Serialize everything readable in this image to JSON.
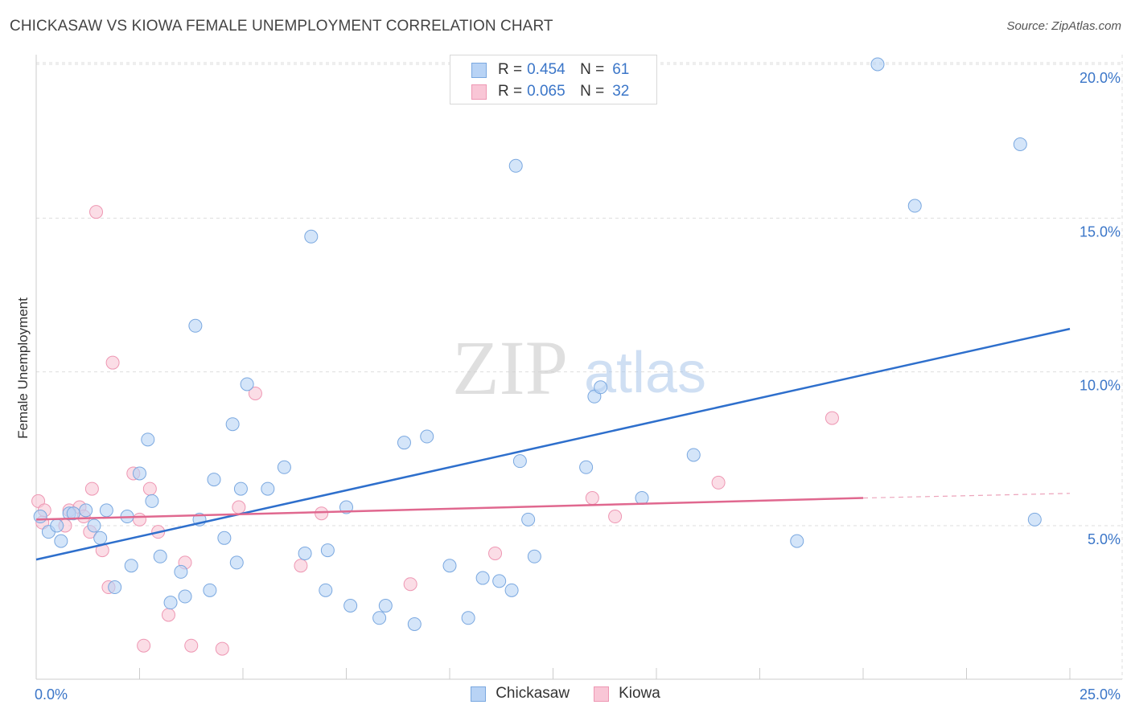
{
  "title": "CHICKASAW VS KIOWA FEMALE UNEMPLOYMENT CORRELATION CHART",
  "source": "Source: ZipAtlas.com",
  "watermark": {
    "zip": "ZIP",
    "atlas": "atlas"
  },
  "legend": {
    "r_label": "R =",
    "n_label": "N =",
    "rows": [
      {
        "name": "Chickasaw",
        "r": "0.454",
        "n": "61"
      },
      {
        "name": "Kiowa",
        "r": "0.065",
        "n": "32"
      }
    ]
  },
  "colors": {
    "chickasaw_fill": "#b8d3f5",
    "chickasaw_stroke": "#7aa8e0",
    "chickasaw_line": "#2e6fcc",
    "kiowa_fill": "#f9c6d6",
    "kiowa_stroke": "#ee97b3",
    "kiowa_line": "#e0688f",
    "tick_label": "#3b76c8",
    "grid": "#dddddd"
  },
  "chart_data": {
    "type": "scatter",
    "title": "CHICKASAW VS KIOWA FEMALE UNEMPLOYMENT CORRELATION CHART",
    "ylabel": "Female Unemployment",
    "xlabel": "",
    "xlim": [
      0,
      25
    ],
    "ylim": [
      0,
      20.5
    ],
    "x_tick_labels": [
      {
        "value": 0,
        "label": "0.0%"
      },
      {
        "value": 25,
        "label": "25.0%"
      }
    ],
    "y_tick_labels": [
      {
        "value": 5,
        "label": "5.0%"
      },
      {
        "value": 10,
        "label": "10.0%"
      },
      {
        "value": 15,
        "label": "15.0%"
      },
      {
        "value": 20,
        "label": "20.0%"
      }
    ],
    "series": [
      {
        "name": "Chickasaw",
        "points": [
          [
            0.1,
            5.3
          ],
          [
            0.3,
            4.8
          ],
          [
            0.5,
            5.0
          ],
          [
            0.6,
            4.5
          ],
          [
            0.8,
            5.4
          ],
          [
            0.9,
            5.4
          ],
          [
            1.2,
            5.5
          ],
          [
            1.4,
            5.0
          ],
          [
            1.55,
            4.6
          ],
          [
            1.7,
            5.5
          ],
          [
            1.9,
            3.0
          ],
          [
            2.2,
            5.3
          ],
          [
            2.3,
            3.7
          ],
          [
            2.5,
            6.7
          ],
          [
            2.7,
            7.8
          ],
          [
            2.8,
            5.8
          ],
          [
            3.0,
            4.0
          ],
          [
            3.25,
            2.5
          ],
          [
            3.5,
            3.5
          ],
          [
            3.6,
            2.7
          ],
          [
            3.85,
            11.5
          ],
          [
            3.95,
            5.2
          ],
          [
            4.2,
            2.9
          ],
          [
            4.3,
            6.5
          ],
          [
            4.55,
            4.6
          ],
          [
            4.75,
            8.3
          ],
          [
            4.85,
            3.8
          ],
          [
            4.95,
            6.2
          ],
          [
            5.1,
            9.6
          ],
          [
            5.6,
            6.2
          ],
          [
            6.0,
            6.9
          ],
          [
            6.5,
            4.1
          ],
          [
            6.65,
            14.4
          ],
          [
            7.0,
            2.9
          ],
          [
            7.05,
            4.2
          ],
          [
            7.5,
            5.6
          ],
          [
            7.6,
            2.4
          ],
          [
            8.3,
            2.0
          ],
          [
            8.45,
            2.4
          ],
          [
            8.9,
            7.7
          ],
          [
            9.15,
            1.8
          ],
          [
            9.45,
            7.9
          ],
          [
            10.0,
            3.7
          ],
          [
            10.45,
            2.0
          ],
          [
            10.8,
            3.3
          ],
          [
            11.2,
            3.2
          ],
          [
            11.5,
            2.9
          ],
          [
            11.6,
            16.7
          ],
          [
            11.7,
            7.1
          ],
          [
            11.9,
            5.2
          ],
          [
            12.05,
            4.0
          ],
          [
            13.3,
            6.9
          ],
          [
            13.5,
            9.2
          ],
          [
            13.65,
            9.5
          ],
          [
            14.65,
            5.9
          ],
          [
            15.9,
            7.3
          ],
          [
            18.4,
            4.5
          ],
          [
            20.35,
            20.0
          ],
          [
            21.25,
            15.4
          ],
          [
            23.8,
            17.4
          ],
          [
            24.15,
            5.2
          ]
        ],
        "trend": {
          "x0": 0,
          "y0": 3.9,
          "x1": 25,
          "y1": 11.4
        }
      },
      {
        "name": "Kiowa",
        "points": [
          [
            0.05,
            5.8
          ],
          [
            0.2,
            5.5
          ],
          [
            0.7,
            5.0
          ],
          [
            0.8,
            5.5
          ],
          [
            1.05,
            5.6
          ],
          [
            1.15,
            5.3
          ],
          [
            1.3,
            4.8
          ],
          [
            1.35,
            6.2
          ],
          [
            1.6,
            4.2
          ],
          [
            1.75,
            3.0
          ],
          [
            1.85,
            10.3
          ],
          [
            1.45,
            15.2
          ],
          [
            2.35,
            6.7
          ],
          [
            2.5,
            5.2
          ],
          [
            2.6,
            1.1
          ],
          [
            2.75,
            6.2
          ],
          [
            2.95,
            4.8
          ],
          [
            3.2,
            2.1
          ],
          [
            3.6,
            3.8
          ],
          [
            3.75,
            1.1
          ],
          [
            4.5,
            1.0
          ],
          [
            4.9,
            5.6
          ],
          [
            5.3,
            9.3
          ],
          [
            6.4,
            3.7
          ],
          [
            6.9,
            5.4
          ],
          [
            9.05,
            3.1
          ],
          [
            11.1,
            4.1
          ],
          [
            13.45,
            5.9
          ],
          [
            14.0,
            5.3
          ],
          [
            16.5,
            6.4
          ],
          [
            19.25,
            8.5
          ],
          [
            0.15,
            5.1
          ]
        ],
        "trend": {
          "x0": 0,
          "y0": 5.2,
          "x1": 20,
          "y1": 5.9
        },
        "trend_extension": {
          "x0": 20,
          "y0": 5.9,
          "x1": 25,
          "y1": 6.05
        }
      }
    ]
  }
}
